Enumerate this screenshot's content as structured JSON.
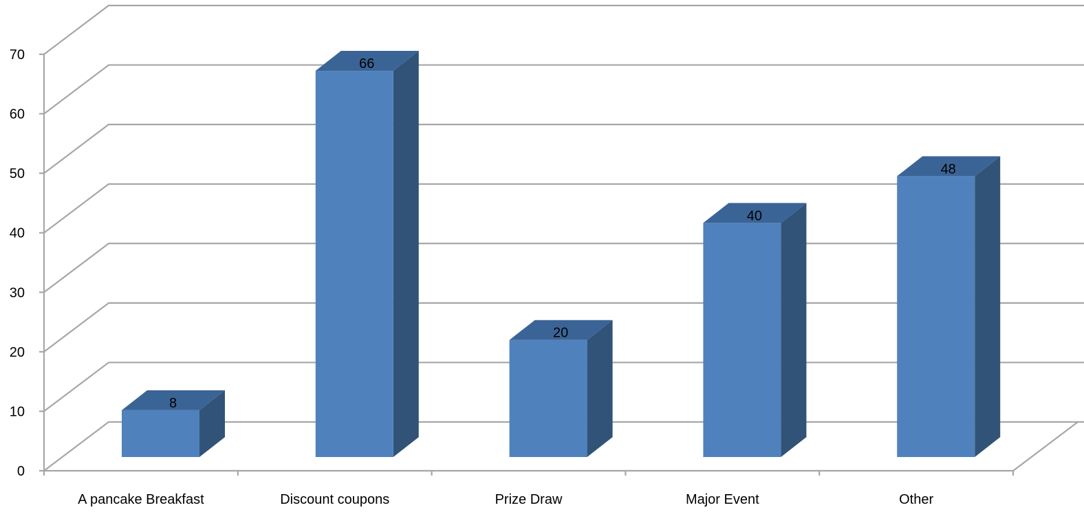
{
  "chart_data": {
    "type": "bar",
    "style": "3d-column",
    "title": "",
    "xlabel": "",
    "ylabel": "",
    "categories": [
      "A pancake Breakfast",
      "Discount coupons",
      "Prize Draw",
      "Major Event",
      "Other"
    ],
    "values": [
      8,
      66,
      20,
      40,
      48
    ],
    "data_labels": [
      "8",
      "66",
      "20",
      "40",
      "48"
    ],
    "ylim": [
      0,
      70
    ],
    "yticks": [
      0,
      10,
      20,
      30,
      40,
      50,
      60,
      70
    ],
    "ytick_labels": [
      "0",
      "10",
      "20",
      "30",
      "40",
      "50",
      "60",
      "70"
    ],
    "grid": true,
    "legend": "none",
    "colors": {
      "bar_front": "#4f81bd",
      "bar_side": "#325378",
      "bar_top": "#3b6496",
      "grid": "#a6a6a6"
    }
  }
}
